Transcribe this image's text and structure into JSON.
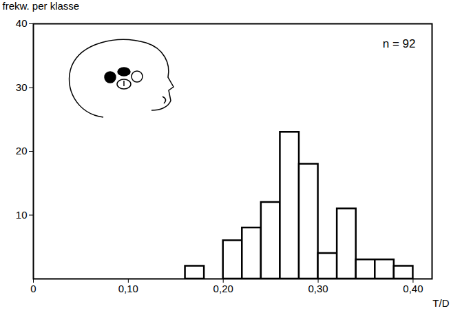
{
  "chart_data": {
    "type": "histogram",
    "y_label": "frekw. per klasse",
    "x_label": "T/D",
    "annotation": "n = 92",
    "bins": [
      0.16,
      0.18,
      0.2,
      0.22,
      0.24,
      0.26,
      0.28,
      0.3,
      0.32,
      0.34,
      0.36,
      0.38,
      0.4
    ],
    "values": [
      2,
      0,
      6,
      8,
      12,
      23,
      18,
      4,
      11,
      3,
      3,
      2
    ],
    "color": "#ffffff",
    "xlim": [
      0,
      0.42
    ],
    "xticks": [
      0,
      {
        "value": 0.1,
        "label": "0,10"
      },
      {
        "value": 0.2,
        "label": "0,20"
      },
      {
        "value": 0.3,
        "label": "0,30"
      },
      {
        "value": 0.4,
        "label": "0,40"
      }
    ],
    "ylim": [
      0,
      40
    ],
    "yticks": [
      10,
      20,
      30,
      40
    ],
    "grid": false
  }
}
